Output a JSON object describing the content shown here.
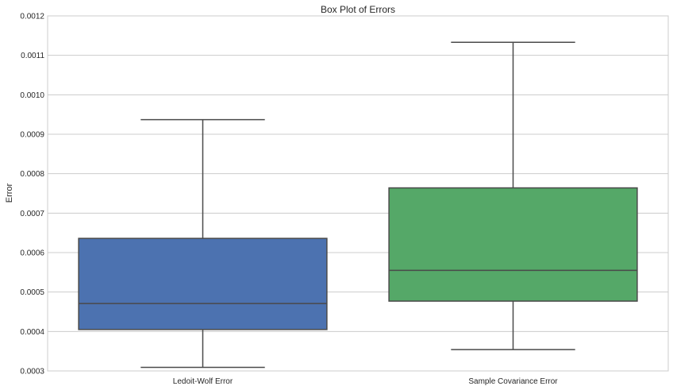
{
  "chart_data": {
    "type": "box",
    "title": "Box Plot of Errors",
    "xlabel": "",
    "ylabel": "Error",
    "ylim": [
      0.0003,
      0.0012
    ],
    "yticks": [
      "0.0003",
      "0.0004",
      "0.0005",
      "0.0006",
      "0.0007",
      "0.0008",
      "0.0009",
      "0.0010",
      "0.0011",
      "0.0012"
    ],
    "grid": true,
    "categories": [
      "Ledoit-Wolf Error",
      "Sample Covariance Error"
    ],
    "boxes": [
      {
        "category": "Ledoit-Wolf Error",
        "whisker_low": 0.000309,
        "q1": 0.000405,
        "median": 0.000471,
        "q3": 0.000636,
        "whisker_high": 0.000937,
        "color": "#4C72B0"
      },
      {
        "category": "Sample Covariance Error",
        "whisker_low": 0.000354,
        "q1": 0.000477,
        "median": 0.000555,
        "q3": 0.000764,
        "whisker_high": 0.001133,
        "color": "#55A868"
      }
    ],
    "colors": {
      "background": "#ffffff",
      "grid": "#cccccc",
      "line": "#4a4a4a"
    }
  }
}
